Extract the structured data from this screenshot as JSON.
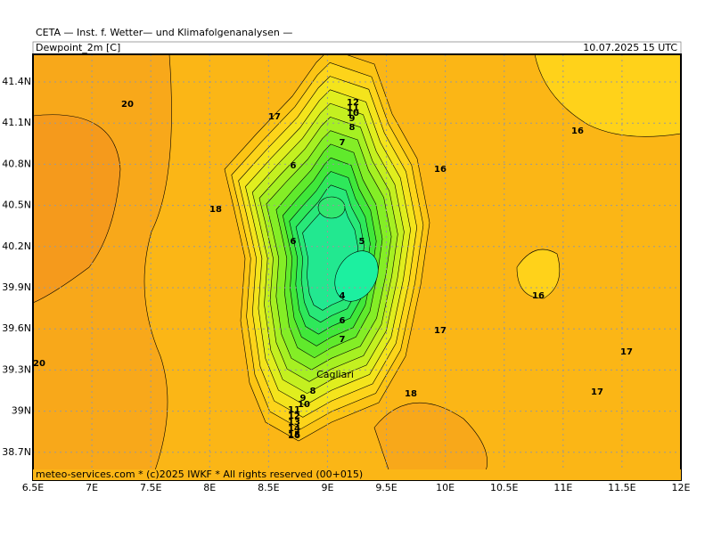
{
  "header": {
    "title": "CETA — Inst. f. Wetter— und Klimafolgenanalysen —",
    "variable": "Dewpoint_2m [C]",
    "valid_time": "10.07.2025 15 UTC"
  },
  "map": {
    "x_labels": [
      "6.5E",
      "7E",
      "7.5E",
      "8E",
      "8.5E",
      "9E",
      "9.5E",
      "10E",
      "10.5E",
      "11E",
      "11.5E",
      "12E"
    ],
    "y_labels": [
      "41.4N",
      "41.1N",
      "40.8N",
      "40.5N",
      "40.2N",
      "39.9N",
      "39.6N",
      "39.3N",
      "39N",
      "38.7N"
    ],
    "contour_labels": [
      "20",
      "17",
      "12",
      "11",
      "10",
      "9",
      "8",
      "7",
      "16",
      "16",
      "6",
      "18",
      "6",
      "5",
      "4",
      "6",
      "7",
      "16",
      "17",
      "17",
      "17",
      "18",
      "20",
      "8",
      "9",
      "10",
      "11",
      "12",
      "13",
      "14",
      "15",
      "16"
    ],
    "places": [
      "Cagliari"
    ]
  },
  "footer": {
    "credit": "meteo-services.com * (c)2025 IWKF * All rights reserved (00+015)"
  }
}
